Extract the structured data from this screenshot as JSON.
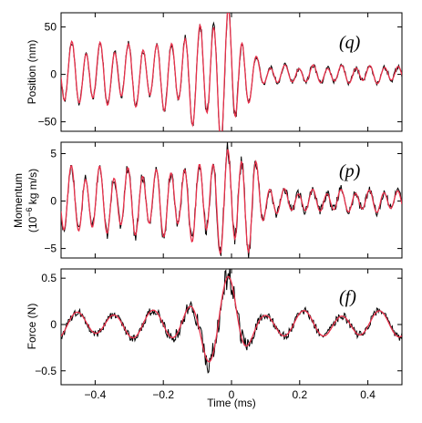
{
  "colors": {
    "measured": "#000000",
    "fit": "#e8304a",
    "axes": "#000000"
  },
  "chart_data": [
    {
      "type": "line",
      "panel_tag": "(q)",
      "ylabel": "Position (nm)",
      "ylabel_sup": "",
      "ylabel_post": "",
      "ylabel_line1": "",
      "ylim": [
        -60,
        65
      ],
      "yticks": [
        -50,
        0,
        50
      ],
      "ytick_labels": [
        "−50",
        "0",
        "50"
      ],
      "xlim": [
        -0.5,
        0.5
      ],
      "xticks": [
        -0.4,
        -0.2,
        0,
        0.2,
        0.4
      ],
      "xtick_labels": [
        "−0.4",
        "−0.2",
        "0",
        "0.2",
        "0.4"
      ],
      "show_xticklabels": false,
      "series": [
        {
          "key": "measured",
          "amp_left": 28,
          "amp_right": 8,
          "peak": 60,
          "peak_t": -0.01,
          "freq": 24,
          "noise": 0.12
        },
        {
          "key": "fit",
          "amp_left": 28,
          "amp_right": 8,
          "peak": 60,
          "peak_t": -0.01,
          "freq": 24,
          "noise": 0
        }
      ]
    },
    {
      "type": "line",
      "panel_tag": "(p)",
      "ylabel": "",
      "ylabel_line1": "Momentum",
      "ylabel_pre": "(10",
      "ylabel_sup": "−6",
      "ylabel_post": " kg m/s)",
      "ylim": [
        -6,
        6.2
      ],
      "yticks": [
        -5,
        0,
        5
      ],
      "ytick_labels": [
        "−5",
        "0",
        "5"
      ],
      "xlim": [
        -0.5,
        0.5
      ],
      "xticks": [
        -0.4,
        -0.2,
        0,
        0.2,
        0.4
      ],
      "xtick_labels": [
        "−0.4",
        "−0.2",
        "0",
        "0.2",
        "0.4"
      ],
      "show_xticklabels": false,
      "series": [
        {
          "key": "measured",
          "amp_left": 3,
          "amp_right": 1,
          "peak": 5,
          "peak_t": 0.03,
          "freq": 24,
          "noise": 0.2
        },
        {
          "key": "fit",
          "amp_left": 3,
          "amp_right": 1,
          "peak": 5,
          "peak_t": 0.03,
          "freq": 24,
          "noise": 0
        }
      ]
    },
    {
      "type": "line",
      "panel_tag": "(f)",
      "ylabel": "Force (N)",
      "ylabel_sup": "",
      "ylabel_post": "",
      "ylabel_line1": "",
      "ylim": [
        -0.65,
        0.6
      ],
      "yticks": [
        -0.5,
        0,
        0.5
      ],
      "ytick_labels": [
        "−0.5",
        "0",
        "0.5"
      ],
      "xlim": [
        -0.5,
        0.5
      ],
      "xticks": [
        -0.4,
        -0.2,
        0,
        0.2,
        0.4
      ],
      "xtick_labels": [
        "−0.4",
        "−0.2",
        "0",
        "0.2",
        "0.4"
      ],
      "show_xticklabels": true,
      "xlabel": "Time (ms)",
      "series": [
        {
          "key": "measured",
          "amp_left": 0.12,
          "amp_right": 0.12,
          "peak": 0.42,
          "peak_t": -0.01,
          "freq": 9,
          "noise": 0.35
        },
        {
          "key": "fit",
          "amp_left": 0.12,
          "amp_right": 0.12,
          "peak": 0.42,
          "peak_t": -0.01,
          "freq": 9,
          "noise": 0
        }
      ]
    }
  ]
}
